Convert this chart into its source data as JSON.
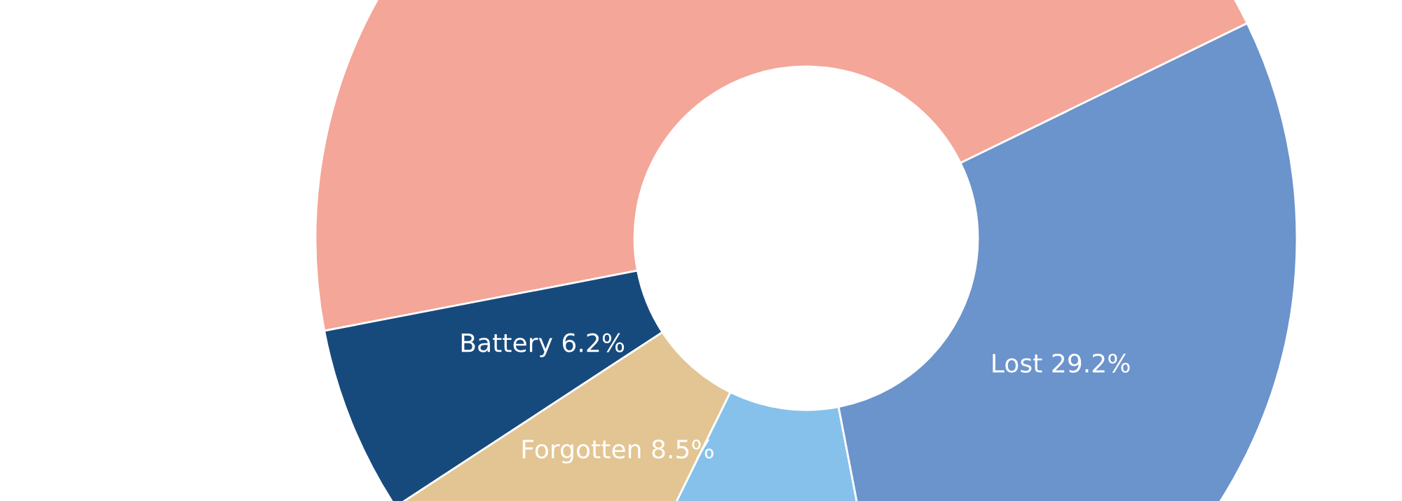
{
  "chart_data": {
    "type": "donut",
    "categories": [
      null,
      "Battery",
      "Forgotten",
      null,
      "Lost"
    ],
    "values": [
      45.8,
      6.2,
      8.5,
      10.3,
      29.2
    ],
    "value_labels": [
      null,
      "6.2%",
      "8.5%",
      null,
      "29.2%"
    ],
    "colors": [
      "#f4a698",
      "#174a7c",
      "#e2c593",
      "#85c1ea",
      "#6b93cc"
    ],
    "legend": false
  }
}
